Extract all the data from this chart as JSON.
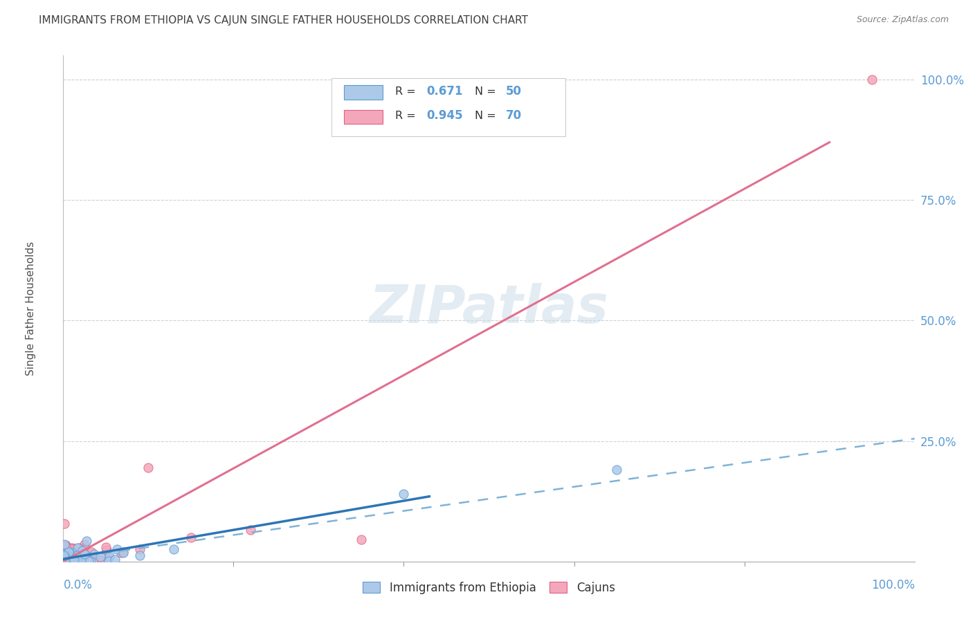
{
  "title": "IMMIGRANTS FROM ETHIOPIA VS CAJUN SINGLE FATHER HOUSEHOLDS CORRELATION CHART",
  "source": "Source: ZipAtlas.com",
  "ylabel": "Single Father Households",
  "axis_color": "#5b9bd5",
  "title_color": "#404040",
  "source_color": "#808080",
  "blue_scatter_color": "#adc9e8",
  "blue_scatter_edge": "#5b9bd5",
  "pink_scatter_color": "#f4a7bb",
  "pink_scatter_edge": "#e06080",
  "blue_line_color": "#2e75b6",
  "blue_dash_color": "#7fb3d8",
  "pink_line_color": "#e07090",
  "grid_color": "#d0d0d0",
  "ytick_labels": [
    "25.0%",
    "50.0%",
    "75.0%",
    "100.0%"
  ],
  "ytick_positions": [
    0.25,
    0.5,
    0.75,
    1.0
  ],
  "legend_label_blue": "Immigrants from Ethiopia",
  "legend_label_pink": "Cajuns",
  "watermark": "ZIPatlas"
}
